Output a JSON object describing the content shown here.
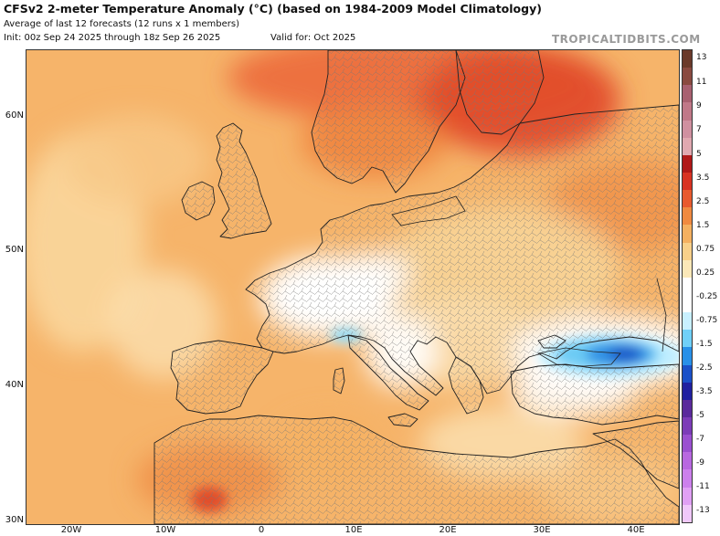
{
  "header": {
    "title": "CFSv2 2-meter Temperature Anomaly (°C) (based on 1984-2009 Model Climatology)",
    "subtitle": "Average of last 12 forecasts (12 runs x 1 members)",
    "init": "Init: 00z Sep 24 2025 through 18z Sep 26 2025",
    "valid": "Valid for: Oct 2025",
    "brand": "TROPICALTIDBITS.COM"
  },
  "map": {
    "region": "Europe, North Africa and Middle East",
    "lat_labels": [
      "60N",
      "50N",
      "40N",
      "30N"
    ],
    "lon_labels": [
      "20W",
      "10W",
      "0",
      "10E",
      "20E",
      "30E",
      "40E"
    ]
  },
  "colorbar": {
    "labels": [
      "13",
      "11",
      "9",
      "7",
      "5",
      "3.5",
      "2.5",
      "1.5",
      "0.75",
      "0.25",
      "-0.25",
      "-0.75",
      "-1.5",
      "-2.5",
      "-3.5",
      "-5",
      "-7",
      "-9",
      "-11",
      "-13"
    ],
    "colors": [
      "#6b3a2a",
      "#8a4a40",
      "#a86070",
      "#c07888",
      "#d090a0",
      "#e0a8b0",
      "#b01818",
      "#d83222",
      "#e85a2e",
      "#f08a40",
      "#f4b060",
      "#f8d08a",
      "#fbe8b8",
      "#ffffff",
      "#ffffff",
      "#c8f0ff",
      "#70d0f8",
      "#2890e8",
      "#1a50c8",
      "#2020a0",
      "#5a2a9c",
      "#7c3cb8",
      "#9a50d0",
      "#b868e0",
      "#cc80ec",
      "#e0a0f4",
      "#f0c8fa"
    ]
  },
  "colors": {
    "ocean_base": "#f6b66a",
    "land_outline": "#222222",
    "border": "#555555"
  }
}
